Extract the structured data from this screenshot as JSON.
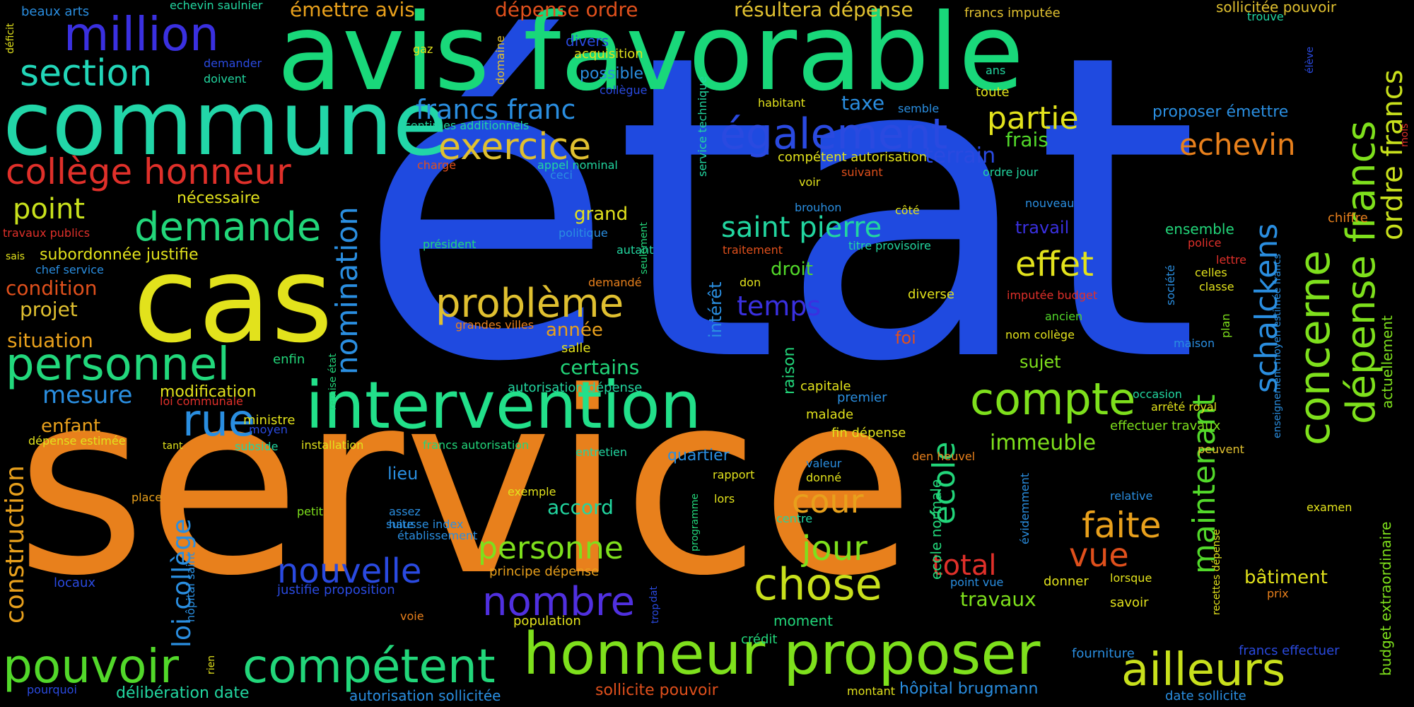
{
  "words": [
    {
      "text": "état",
      "color": "#1f4ae0"
    },
    {
      "text": "service",
      "color": "#e8801c"
    },
    {
      "text": "avis favorable",
      "color": "#19d87a"
    },
    {
      "text": "commune",
      "color": "#22d6a8"
    },
    {
      "text": "cas",
      "color": "#e2e21c"
    },
    {
      "text": "intervention",
      "color": "#22e08a"
    },
    {
      "text": "honneur proposer",
      "color": "#7ee01c"
    },
    {
      "text": "compétent",
      "color": "#22d67a"
    },
    {
      "text": "pouvoir",
      "color": "#52d82a"
    },
    {
      "text": "personnel",
      "color": "#22d87c"
    },
    {
      "text": "million",
      "color": "#3a30e0"
    },
    {
      "text": "section",
      "color": "#22d6b8"
    },
    {
      "text": "collège honneur",
      "color": "#e0302a"
    },
    {
      "text": "demande",
      "color": "#22d67a"
    },
    {
      "text": "également",
      "color": "#2a4ae0"
    },
    {
      "text": "exercice",
      "color": "#e0c030"
    },
    {
      "text": "problème",
      "color": "#e0c030"
    },
    {
      "text": "saint pierre",
      "color": "#22d6a0"
    },
    {
      "text": "compte",
      "color": "#7ee01c"
    },
    {
      "text": "concerne",
      "color": "#7ee01c"
    },
    {
      "text": "dépense francs",
      "color": "#7ee01c"
    },
    {
      "text": "ordre francs",
      "color": "#c8e01c"
    },
    {
      "text": "schalckens",
      "color": "#2a8ee0"
    },
    {
      "text": "echevin",
      "color": "#e8801c"
    },
    {
      "text": "ailleurs",
      "color": "#c8e01c"
    },
    {
      "text": "chose",
      "color": "#c8e01c"
    },
    {
      "text": "nombre",
      "color": "#5030e0"
    },
    {
      "text": "nouvelle",
      "color": "#2a4ae0"
    },
    {
      "text": "personne",
      "color": "#7ee01c"
    },
    {
      "text": "rue",
      "color": "#2a8ee0"
    },
    {
      "text": "effet",
      "color": "#e2e21c"
    },
    {
      "text": "faite",
      "color": "#e8a01c"
    },
    {
      "text": "vue",
      "color": "#e0501c"
    },
    {
      "text": "total",
      "color": "#e0302a"
    },
    {
      "text": "jour",
      "color": "#7ee01c"
    },
    {
      "text": "cour",
      "color": "#e8a01c"
    },
    {
      "text": "partie",
      "color": "#e2e21c"
    },
    {
      "text": "maintenant",
      "color": "#52d82a"
    },
    {
      "text": "école",
      "color": "#22d67a"
    },
    {
      "text": "nomination",
      "color": "#2a8ee0"
    },
    {
      "text": "construction",
      "color": "#e8a01c"
    },
    {
      "text": "loi collège",
      "color": "#2a8ee0"
    },
    {
      "text": "francs franc",
      "color": "#2a8ee0"
    },
    {
      "text": "temps",
      "color": "#3a30e0"
    },
    {
      "text": "point",
      "color": "#c8e01c"
    },
    {
      "text": "mesure",
      "color": "#2a8ee0"
    },
    {
      "text": "terrain",
      "color": "#2a4ae0"
    },
    {
      "text": "frais",
      "color": "#52d82a"
    },
    {
      "text": "immeuble",
      "color": "#7ee01c"
    },
    {
      "text": "certains",
      "color": "#22d67a"
    },
    {
      "text": "droit",
      "color": "#52d82a"
    },
    {
      "text": "taxe",
      "color": "#2a8ee0"
    },
    {
      "text": "grand",
      "color": "#e2e21c"
    },
    {
      "text": "année",
      "color": "#e8a01c"
    },
    {
      "text": "accord",
      "color": "#22d6a0"
    },
    {
      "text": "travaux",
      "color": "#7ee01c"
    },
    {
      "text": "bâtiment",
      "color": "#e2e21c"
    },
    {
      "text": "émettre avis",
      "color": "#e8a01c"
    },
    {
      "text": "dépense ordre",
      "color": "#e0501c"
    },
    {
      "text": "résultera dépense",
      "color": "#e0c030"
    },
    {
      "text": "projet",
      "color": "#e0c030"
    },
    {
      "text": "situation",
      "color": "#e8a01c"
    },
    {
      "text": "condition",
      "color": "#e0501c"
    },
    {
      "text": "nécessaire",
      "color": "#e2e21c"
    },
    {
      "text": "subordonnée justifie",
      "color": "#e2e21c"
    },
    {
      "text": "enfant",
      "color": "#e8a01c"
    },
    {
      "text": "modification",
      "color": "#e2e21c"
    },
    {
      "text": "quartier",
      "color": "#2a8ee0"
    },
    {
      "text": "lieu",
      "color": "#2a8ee0"
    },
    {
      "text": "sujet",
      "color": "#7ee01c"
    },
    {
      "text": "foi",
      "color": "#e0501c"
    },
    {
      "text": "travail",
      "color": "#3a30e0"
    },
    {
      "text": "ensemble",
      "color": "#22d67a"
    },
    {
      "text": "intérêt",
      "color": "#2a8ee0"
    },
    {
      "text": "raison",
      "color": "#22d67a"
    },
    {
      "text": "diverse",
      "color": "#e2e21c"
    },
    {
      "text": "moment",
      "color": "#22d67a"
    },
    {
      "text": "ecole normale",
      "color": "#22d67a"
    },
    {
      "text": "actuellement",
      "color": "#7ee01c"
    },
    {
      "text": "budget extraordinaire",
      "color": "#7ee01c"
    },
    {
      "text": "proposer émettre",
      "color": "#2a8ee0"
    },
    {
      "text": "divers",
      "color": "#2a4ae0"
    },
    {
      "text": "possible",
      "color": "#2a8ee0"
    },
    {
      "text": "acquisition",
      "color": "#e2e21c"
    },
    {
      "text": "francs imputée",
      "color": "#e0c030"
    },
    {
      "text": "sollicitée pouvoir",
      "color": "#e0c030"
    },
    {
      "text": "trouve",
      "color": "#22d6a0"
    },
    {
      "text": "beaux arts",
      "color": "#2a8ee0"
    },
    {
      "text": "echevin saulnier",
      "color": "#22d6a0"
    },
    {
      "text": "demander",
      "color": "#2a4ae0"
    },
    {
      "text": "doivent",
      "color": "#22d6a0"
    },
    {
      "text": "gaz",
      "color": "#e2e21c"
    },
    {
      "text": "domaine",
      "color": "#e0c030"
    },
    {
      "text": "collègue",
      "color": "#2a4ae0"
    },
    {
      "text": "ans",
      "color": "#22d6a0"
    },
    {
      "text": "toute",
      "color": "#e2e21c"
    },
    {
      "text": "habitant",
      "color": "#e2e21c"
    },
    {
      "text": "semble",
      "color": "#2a8ee0"
    },
    {
      "text": "centimes additionnels",
      "color": "#22d6a0"
    },
    {
      "text": "service technique",
      "color": "#22d6a0"
    },
    {
      "text": "compétent autorisation",
      "color": "#e2e21c"
    },
    {
      "text": "appel nominal",
      "color": "#22d6a0"
    },
    {
      "text": "ceci",
      "color": "#2a8ee0"
    },
    {
      "text": "charge",
      "color": "#e0501c"
    },
    {
      "text": "suivant",
      "color": "#e0501c"
    },
    {
      "text": "voir",
      "color": "#e2e21c"
    },
    {
      "text": "ordre jour",
      "color": "#22d6a0"
    },
    {
      "text": "nouveau",
      "color": "#2a8ee0"
    },
    {
      "text": "brouhon",
      "color": "#2a8ee0"
    },
    {
      "text": "côté",
      "color": "#e2e21c"
    },
    {
      "text": "lettre",
      "color": "#e0302a"
    },
    {
      "text": "chiffre",
      "color": "#e8801c"
    },
    {
      "text": "police",
      "color": "#e0302a"
    },
    {
      "text": "celles",
      "color": "#e2e21c"
    },
    {
      "text": "classe",
      "color": "#e2e21c"
    },
    {
      "text": "société",
      "color": "#2a8ee0"
    },
    {
      "text": "imputée budget",
      "color": "#e0302a"
    },
    {
      "text": "ancien",
      "color": "#52d82a"
    },
    {
      "text": "nom collège",
      "color": "#e2e21c"
    },
    {
      "text": "maison",
      "color": "#2a8ee0"
    },
    {
      "text": "plan",
      "color": "#7ee01c"
    },
    {
      "text": "élève",
      "color": "#2a4ae0"
    },
    {
      "text": "déficit",
      "color": "#e2e21c"
    },
    {
      "text": "mois",
      "color": "#e0302a"
    },
    {
      "text": "travaux publics",
      "color": "#e0302a"
    },
    {
      "text": "sais",
      "color": "#e2e21c"
    },
    {
      "text": "chef service",
      "color": "#2a8ee0"
    },
    {
      "text": "président",
      "color": "#22d67a"
    },
    {
      "text": "politique",
      "color": "#2a8ee0"
    },
    {
      "text": "autant",
      "color": "#22d6a0"
    },
    {
      "text": "seulement",
      "color": "#22d67a"
    },
    {
      "text": "traitement",
      "color": "#e0501c"
    },
    {
      "text": "titre provisoire",
      "color": "#22d6a0"
    },
    {
      "text": "don",
      "color": "#e2e21c"
    },
    {
      "text": "demandé",
      "color": "#e8801c"
    },
    {
      "text": "grandes villes",
      "color": "#e8801c"
    },
    {
      "text": "salle",
      "color": "#e2e21c"
    },
    {
      "text": "enfin",
      "color": "#22d67a"
    },
    {
      "text": "remise état",
      "color": "#22d67a"
    },
    {
      "text": "autorisation dépense",
      "color": "#22d6a0"
    },
    {
      "text": "loi communale",
      "color": "#e0302a"
    },
    {
      "text": "ministre",
      "color": "#e2e21c"
    },
    {
      "text": "moyen",
      "color": "#2a4ae0"
    },
    {
      "text": "capitale",
      "color": "#e2e21c"
    },
    {
      "text": "premier",
      "color": "#2a8ee0"
    },
    {
      "text": "malade",
      "color": "#e2e21c"
    },
    {
      "text": "fin dépense",
      "color": "#e2e21c"
    },
    {
      "text": "occasion",
      "color": "#22d6a0"
    },
    {
      "text": "arrêté royal",
      "color": "#e2e21c"
    },
    {
      "text": "effectuer travaux",
      "color": "#7ee01c"
    },
    {
      "text": "peuvent",
      "color": "#e0c030"
    },
    {
      "text": "enseignement moyen estimée francs",
      "color": "#2a8ee0"
    },
    {
      "text": "dépense estimée",
      "color": "#e2e21c"
    },
    {
      "text": "tant",
      "color": "#e2e21c"
    },
    {
      "text": "subside",
      "color": "#22d6a0"
    },
    {
      "text": "installation",
      "color": "#e2e21c"
    },
    {
      "text": "francs autorisation",
      "color": "#22d67a"
    },
    {
      "text": "entretien",
      "color": "#22d6a0"
    },
    {
      "text": "den heuvel",
      "color": "#e8801c"
    },
    {
      "text": "rapport",
      "color": "#e2e21c"
    },
    {
      "text": "valeur",
      "color": "#2a8ee0"
    },
    {
      "text": "donné",
      "color": "#e2e21c"
    },
    {
      "text": "place",
      "color": "#e8a01c"
    },
    {
      "text": "hôpital saint",
      "color": "#2a8ee0"
    },
    {
      "text": "exemple",
      "color": "#e2e21c"
    },
    {
      "text": "petit",
      "color": "#7ee01c"
    },
    {
      "text": "suite",
      "color": "#2a8ee0"
    },
    {
      "text": "assez",
      "color": "#2a8ee0"
    },
    {
      "text": "hausse index",
      "color": "#2a8ee0"
    },
    {
      "text": "établissement",
      "color": "#2a8ee0"
    },
    {
      "text": "programme",
      "color": "#22d67a"
    },
    {
      "text": "lors",
      "color": "#e2e21c"
    },
    {
      "text": "centre",
      "color": "#22d6a0"
    },
    {
      "text": "évidemment",
      "color": "#2a8ee0"
    },
    {
      "text": "relative",
      "color": "#2a8ee0"
    },
    {
      "text": "recettes dépense",
      "color": "#e2e21c"
    },
    {
      "text": "examen",
      "color": "#e2e21c"
    },
    {
      "text": "locaux",
      "color": "#2a4ae0"
    },
    {
      "text": "justifie proposition",
      "color": "#2a4ae0"
    },
    {
      "text": "principe dépense",
      "color": "#e8a01c"
    },
    {
      "text": "dat",
      "color": "#2a4ae0"
    },
    {
      "text": "trop",
      "color": "#2a4ae0"
    },
    {
      "text": "point vue",
      "color": "#2a8ee0"
    },
    {
      "text": "donner",
      "color": "#e2e21c"
    },
    {
      "text": "lorsque",
      "color": "#e2e21c"
    },
    {
      "text": "savoir",
      "color": "#e2e21c"
    },
    {
      "text": "prix",
      "color": "#e8801c"
    },
    {
      "text": "voie",
      "color": "#e8801c"
    },
    {
      "text": "population",
      "color": "#e2e21c"
    },
    {
      "text": "crédit",
      "color": "#22d67a"
    },
    {
      "text": "rien",
      "color": "#e2e21c"
    },
    {
      "text": "fourniture",
      "color": "#2a8ee0"
    },
    {
      "text": "francs effectuer",
      "color": "#2a4ae0"
    },
    {
      "text": "délibération date",
      "color": "#22d6a0"
    },
    {
      "text": "pourquoi",
      "color": "#2a4ae0"
    },
    {
      "text": "autorisation sollicitée",
      "color": "#2a8ee0"
    },
    {
      "text": "sollicite pouvoir",
      "color": "#e0501c"
    },
    {
      "text": "montant",
      "color": "#e2e21c"
    },
    {
      "text": "hôpital brugmann",
      "color": "#2a8ee0"
    },
    {
      "text": "date sollicite",
      "color": "#2a8ee0"
    }
  ]
}
